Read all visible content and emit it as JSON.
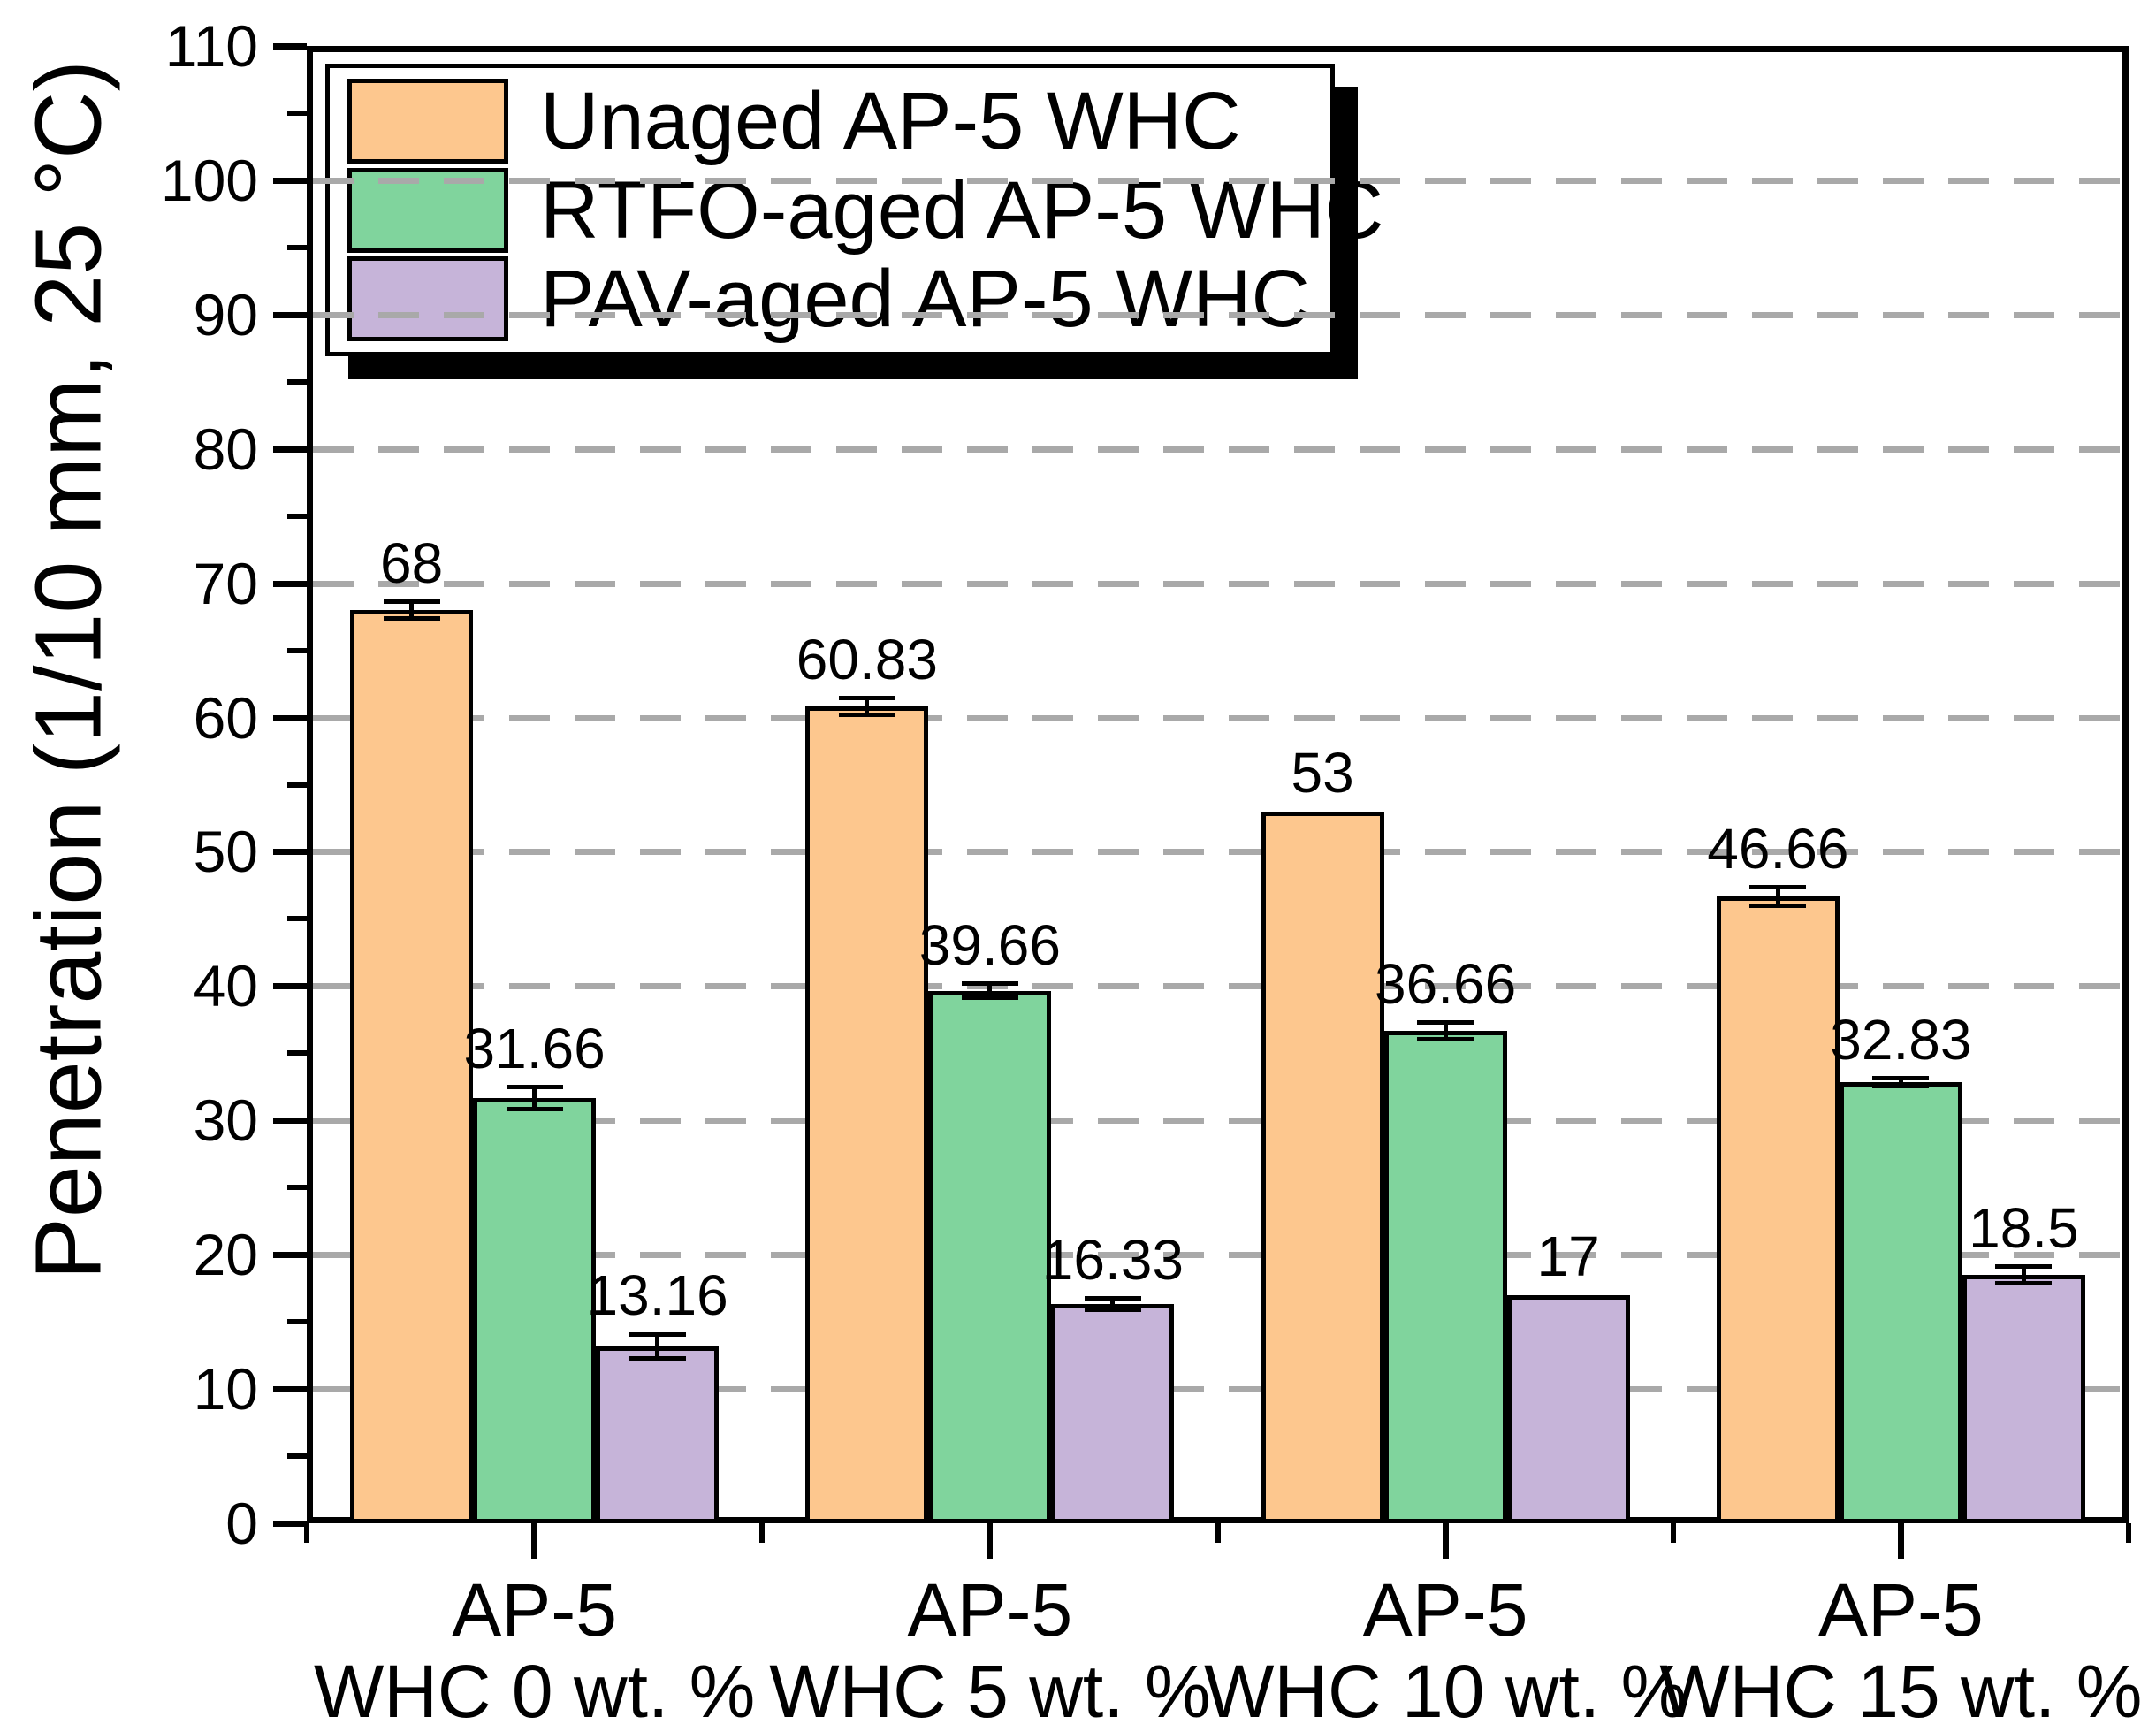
{
  "figure": {
    "background": "#ffffff",
    "frame_color": "#000000",
    "gridline_color": "#A9A9A9",
    "gridline_style": "dashed"
  },
  "chart_data": {
    "type": "bar",
    "title": "",
    "xlabel": "",
    "ylabel": "Penetration (1/10 mm, 25 °C)",
    "ylim": [
      0,
      110
    ],
    "y_major_step": 10,
    "y_minor_step": 5,
    "y_tick_labels": [
      "0",
      "10",
      "20",
      "30",
      "40",
      "50",
      "60",
      "70",
      "80",
      "90",
      "100",
      "110"
    ],
    "grid": "horizontal dashed at major ticks",
    "legend_position": "top-left inside plot, with black drop shadow",
    "categories": [
      {
        "line1": "AP-5",
        "line2": "WHC 0 wt. %"
      },
      {
        "line1": "AP-5",
        "line2": "WHC 5 wt. %"
      },
      {
        "line1": "AP-5",
        "line2": "WHC 10 wt. %"
      },
      {
        "line1": "AP-5",
        "line2": "WHC 15 wt. %"
      }
    ],
    "series": [
      {
        "name": "Unaged AP-5 WHC",
        "color": "#FDC78E",
        "values": [
          68,
          60.83,
          53,
          46.66
        ],
        "errors": [
          0.6,
          0.6,
          0,
          0.7
        ],
        "value_labels": [
          "68",
          "60.83",
          "53",
          "46.66"
        ]
      },
      {
        "name": "RTFO-aged AP-5 WHC",
        "color": "#80D49D",
        "values": [
          31.66,
          39.66,
          36.66,
          32.83
        ],
        "errors": [
          0.8,
          0.5,
          0.6,
          0.3
        ],
        "value_labels": [
          "31.66",
          "39.66",
          "36.66",
          "32.83"
        ]
      },
      {
        "name": "PAV-aged AP-5 WHC",
        "color": "#C6B4D9",
        "values": [
          13.16,
          16.33,
          17,
          18.5
        ],
        "errors": [
          0.9,
          0.4,
          0,
          0.6
        ],
        "value_labels": [
          "13.16",
          "16.33",
          "17",
          "18.5"
        ]
      }
    ]
  }
}
